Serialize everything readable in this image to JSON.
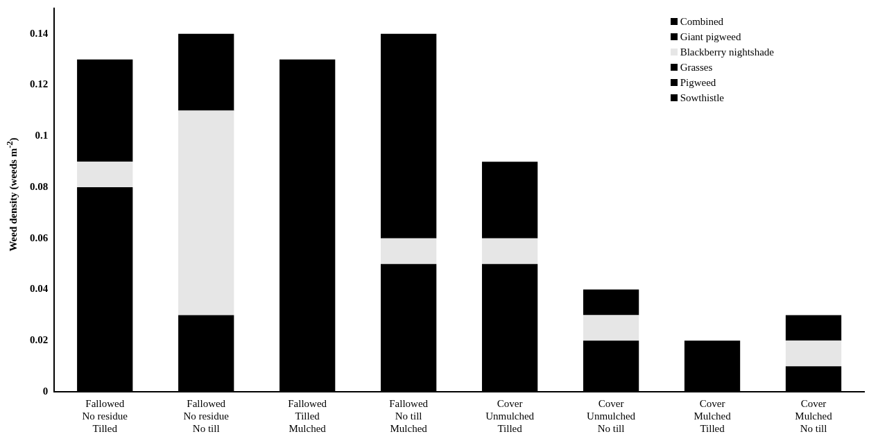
{
  "chart_data": {
    "type": "bar",
    "stacked": true,
    "ylabel": "Weed density (weeds m$^{-2}$)",
    "categories": [
      "Fallowed\nNo residue\nTilled",
      "Fallowed\nNo residue\nNo till",
      "Fallowed\nTilled\nMulched",
      "Fallowed\nNo till\nMulched",
      "Cover\nUnmulched\nTilled",
      "Cover\nUnmulched\nNo till",
      "Cover\nMulched\nTilled",
      "Cover\nMulched\nNo till"
    ],
    "series": [
      {
        "name": "Sowthistle",
        "color": "#000000",
        "values": [
          0.08,
          0.03,
          0.13,
          0.05,
          0.05,
          0.02,
          0.02,
          0.01
        ]
      },
      {
        "name": "Pigweed",
        "color": "#000000",
        "values": [
          null,
          null,
          null,
          null,
          null,
          null,
          null,
          null
        ]
      },
      {
        "name": "Grasses",
        "color": "#000000",
        "values": [
          null,
          null,
          null,
          null,
          null,
          null,
          null,
          null
        ]
      },
      {
        "name": "Blackberry nightshade",
        "color": "#e6e6e6",
        "values": [
          0.01,
          0.08,
          null,
          0.01,
          0.01,
          0.01,
          null,
          0.01
        ]
      },
      {
        "name": "Giant pigweed",
        "color": "#000000",
        "values": [
          0.04,
          0.03,
          null,
          0.08,
          0.03,
          0.01,
          null,
          0.01
        ]
      },
      {
        "name": "Combined",
        "color": "#000000",
        "values": [
          null,
          null,
          null,
          null,
          null,
          null,
          null,
          null
        ]
      }
    ],
    "ylim": [
      0,
      0.15
    ],
    "yticks": [
      0,
      0.02,
      0.04,
      0.06,
      0.08,
      0.1,
      0.12,
      0.14
    ],
    "grid": false,
    "legend": "top right"
  }
}
